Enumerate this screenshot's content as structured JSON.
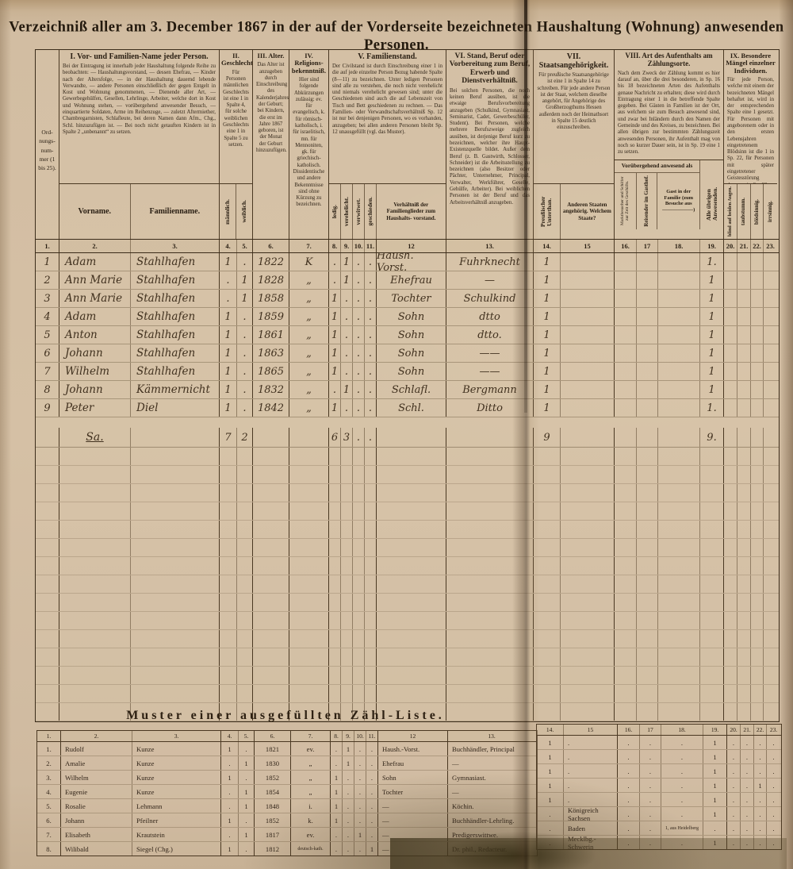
{
  "title": "Verzeichniß aller am 3. December 1867 in der auf der Vorderseite bezeichneten Haushaltung (Wohnung) anwesenden Personen.",
  "header": {
    "ord_label": "Ord- nungs- num- mer (1 bis 25).",
    "s1": {
      "title": "I. Vor- und Familien-Name jeder Person.",
      "desc": "Bei der Eintragung ist innerhalb jeder Haushaltung folgende Reihe zu beobachten: — Haushaltungsvorstand, — dessen Ehefrau, — Kinder nach der Altersfolge, — in der Haushaltung dauernd lebende Verwandte, — andere Personen einschließlich der gegen Entgelt in Kost und Wohnung genommenen, — Dienende aller Art, — Gewerbegehülfen, Gesellen, Lehrlinge, Arbeiter, welche dort in Kost und Wohnung stehen, — vorübergehend anwesender Besuch, — einquartierte Soldaten, Arme im Reihenzuge, — zuletzt Aftermiether, Chambregarnisten, Schlafleute, bei deren Namen dann Afm., Chg., Schl. hinzuzufügen ist. — Bei noch nicht getauften Kindern ist in Spalte 2 „unbenannt“ zu setzen.",
      "sub_vorname": "Vorname.",
      "sub_familienname": "Familienname."
    },
    "s2": {
      "title": "II. Geschlecht.",
      "desc": "Für Personen männlichen Geschlechts ist eine 1 in Spalte 4, für solche weiblichen Geschlechts eine 1 in Spalte 5 zu setzen.",
      "sub_m": "männlich.",
      "sub_w": "weiblich."
    },
    "s3": {
      "title": "III. Alter.",
      "desc": "Das Alter ist anzugeben durch Einschreibung des Kalenderjahres der Geburt; bei Kindern, die erst im Jahre 1867 geboren, ist der Monat der Geburt hinzuzufügen."
    },
    "s4": {
      "title": "IV. Religions- bekenntniß.",
      "desc": "Hier sind folgende Abkürzungen zulässig: ev. für evangelisch, k. für römisch- katholisch, i. für israelitisch, mn. für Mennoniten, gk. für griechisch- katholisch. Dissidentische und andere Bekenntnisse sind ohne Kürzung zu bezeichnen."
    },
    "s5": {
      "title": "V. Familienstand.",
      "desc": "Der Civilstand ist durch Einschreibung einer 1 in die auf jede einzelne Person Bezug habende Spalte (8—11) zu bezeichnen. Unter ledigen Personen sind alle zu verstehen, die noch nicht verehelicht und niemals verehelicht gewesen sind; unter die Geschiedenen sind auch die auf Lebenszeit von Tisch und Bett geschiedenen zu rechnen. — Das Familien- oder Verwandtschaftsverhältniß Sp. 12 ist nur bei denjenigen Personen, wo es vorhanden, anzugeben; bei allen anderen Personen bleibt Sp. 12 unausgefüllt (vgl. das Muster).",
      "sub8": "ledig.",
      "sub9": "verehelicht.",
      "sub10": "verwitwet.",
      "sub11": "geschieden.",
      "sub12": "Verhältniß der Familienglieder zum Haushalts- vorstand."
    },
    "s6": {
      "title": "VI. Stand, Beruf oder Vorbereitung zum Beruf, Erwerb und Dienstverhältniß.",
      "desc": "Bei solchen Personen, die noch keinen Beruf ausüben, ist die etwaige Berufsvorbereitung anzugeben (Schulkind, Gymnasiast, Seminarist, Cadet, Gewerbeschüler, Student). Bei Personen, welche mehrere Berufszweige zugleich ausüben, ist derjenige Beruf kurz zu bezeichnen, welcher ihre Haupt-Existenzquelle bildet. Außer dem Beruf (z. B. Gastwirth, Schlosser, Schneider) ist die Arbeitsstellung zu bezeichnen (also Besitzer oder Pächter, Unternehmer, Principal, Verwalter, Werkführer, Geselle, Gehülfe, Arbeiter). Bei weiblichen Personen ist der Beruf und das Arbeitsverhältniß anzugeben."
    },
    "s7": {
      "title": "VII. Staatsangehörigkeit.",
      "desc": "Für preußische Staatsangehörige ist eine 1 in Spalte 14 zu schreiben. Für jede andere Person ist der Staat, welchem dieselbe angehört, für Angehörige des Großherzogthums Hessen außerdem noch der Heimathsort in Spalte 15 deutlich einzuschreiben.",
      "sub14": "Preußischer Unterthan.",
      "sub15": "Anderen Staaten angehörig. Welchem Staate?"
    },
    "s8": {
      "title": "VIII. Art des Aufenthalts am Zählungsorte.",
      "desc": "Nach dem Zweck der Zählung kommt es hier darauf an, über die drei besonderen, in Sp. 16 bis 18 bezeichneten Arten des Aufenthalts genaue Nachricht zu erhalten; diese wird durch Eintragung einer 1 in die betreffende Spalte gegeben. Bei Gästen in Familien ist der Ort, aus welchem sie zum Besuch anwesend sind, und zwar bei Inländern durch den Namen der Gemeinde und des Kreises, zu bezeichnen. Bei allen übrigen zur bestimmten Zählungszeit anwesenden Personen, ihr Aufenthalt mag von noch so kurzer Dauer sein, ist in Sp. 19 eine 1 zu setzen.",
      "band": "Vorübergehend anwesend als",
      "sub16": "Marktbesucher und Schiffer zur Zeit des Geschäfts.",
      "sub17": "Reisender im Gasthof.",
      "sub18": "Gast in der Familie (zum Besuche aus ——————)",
      "sub19": "Alle übrigen Anwesenden."
    },
    "s9": {
      "title": "IX. Besondere Mängel einzelner Individuen.",
      "desc": "Für jede Person, welche mit einem der bezeichneten Mängel behaftet ist, wird in der entsprechenden Spalte eine 1 gesetzt. Für Personen mit angeborenem oder in den ersten Lebensjahren eingetretenem Blödsinn ist die 1 in Sp. 22, für Personen mit später eingetretener Geistesstörung dagegen in Sp. 23 zu setzen.",
      "sub20": "blind auf beiden Augen.",
      "sub21": "taubstumm.",
      "sub22": "blödsinnig.",
      "sub23": "irrsinnig."
    },
    "col_numbers": [
      "1.",
      "2.",
      "3.",
      "4.",
      "5.",
      "6.",
      "7.",
      "8.",
      "9.",
      "10.",
      "11.",
      "12",
      "13.",
      "14.",
      "15",
      "16.",
      "17",
      "18.",
      "19.",
      "20.",
      "21.",
      "22.",
      "23."
    ]
  },
  "main": {
    "rows": [
      [
        "1",
        "Adam",
        "Stahlhafen",
        "1",
        ".",
        "1822",
        "K",
        ".",
        "1",
        ".",
        ".",
        "Haush. Vorst.",
        "Fuhrknecht",
        "1",
        "",
        "",
        "",
        "",
        "1.",
        "",
        "",
        "",
        ""
      ],
      [
        "2",
        "Ann Marie",
        "Stahlhafen",
        ".",
        "1",
        "1828",
        "„",
        ".",
        "1",
        ".",
        ".",
        "Ehefrau",
        "—",
        "1",
        "",
        "",
        "",
        "",
        "1",
        "",
        "",
        "",
        ""
      ],
      [
        "3",
        "Ann Marie",
        "Stahlhafen",
        ".",
        "1",
        "1858",
        "„",
        "1",
        ".",
        ".",
        ".",
        "Tochter",
        "Schulkind",
        "1",
        "",
        "",
        "",
        "",
        "1",
        "",
        "",
        "",
        ""
      ],
      [
        "4",
        "Adam",
        "Stahlhafen",
        "1",
        ".",
        "1859",
        "„",
        "1",
        ".",
        ".",
        ".",
        "Sohn",
        "dtto",
        "1",
        "",
        "",
        "",
        "",
        "1",
        "",
        "",
        "",
        ""
      ],
      [
        "5",
        "Anton",
        "Stahlhafen",
        "1",
        ".",
        "1861",
        "„",
        "1",
        ".",
        ".",
        ".",
        "Sohn",
        "dtto.",
        "1",
        "",
        "",
        "",
        "",
        "1",
        "",
        "",
        "",
        ""
      ],
      [
        "6",
        "Johann",
        "Stahlhafen",
        "1",
        ".",
        "1863",
        "„",
        "1",
        ".",
        ".",
        ".",
        "Sohn",
        "——",
        "1",
        "",
        "",
        "",
        "",
        "1",
        "",
        "",
        "",
        ""
      ],
      [
        "7",
        "Wilhelm",
        "Stahlhafen",
        "1",
        ".",
        "1865",
        "„",
        "1",
        ".",
        ".",
        ".",
        "Sohn",
        "——",
        "1",
        "",
        "",
        "",
        "",
        "1",
        "",
        "",
        "",
        ""
      ],
      [
        "8",
        "Johann",
        "Kämmernicht",
        "1",
        ".",
        "1832",
        "„",
        ".",
        "1",
        ".",
        ".",
        "Schlafl.",
        "Bergmann",
        "1",
        "",
        "",
        "",
        "",
        "1",
        "",
        "",
        "",
        ""
      ],
      [
        "9",
        "Peter",
        "Diel",
        "1",
        ".",
        "1842",
        "„",
        "1",
        ".",
        ".",
        ".",
        "Schl.",
        "Ditto",
        "1",
        "",
        "",
        "",
        "",
        "1.",
        "",
        "",
        "",
        ""
      ]
    ],
    "sum_row": [
      "",
      "Sa.",
      "",
      "7",
      "2",
      "",
      "",
      "6",
      "3",
      ".",
      ".",
      "",
      "",
      "9",
      "",
      "",
      "",
      "",
      "9.",
      "",
      "",
      "",
      ""
    ]
  },
  "muster": {
    "title": "Muster einer ausgefüllten Zähl-Liste.",
    "rows": [
      [
        "1.",
        "Rudolf",
        "Kunze",
        "1",
        ".",
        "1821",
        "ev.",
        ".",
        "1",
        ".",
        ".",
        "Haush.-Vorst.",
        "Buchhändler, Principal",
        "1",
        ".",
        ".",
        ".",
        ".",
        "1",
        ".",
        ".",
        ".",
        "."
      ],
      [
        "2.",
        "Amalie",
        "Kunze",
        ".",
        "1",
        "1830",
        "„",
        ".",
        "1",
        ".",
        ".",
        "Ehefrau",
        "—",
        "1",
        ".",
        ".",
        ".",
        ".",
        "1",
        ".",
        ".",
        ".",
        "."
      ],
      [
        "3.",
        "Wilhelm",
        "Kunze",
        "1",
        ".",
        "1852",
        "„",
        "1",
        ".",
        ".",
        ".",
        "Sohn",
        "Gymnasiast.",
        "1",
        ".",
        ".",
        ".",
        ".",
        "1",
        ".",
        ".",
        ".",
        "."
      ],
      [
        "4.",
        "Eugenie",
        "Kunze",
        ".",
        "1",
        "1854",
        "„",
        "1",
        ".",
        ".",
        ".",
        "Tochter",
        "—",
        "1",
        ".",
        ".",
        ".",
        ".",
        "1",
        ".",
        ".",
        "1",
        "."
      ],
      [
        "5.",
        "Rosalie",
        "Lehmann",
        ".",
        "1",
        "1848",
        "i.",
        "1",
        ".",
        ".",
        ".",
        "—",
        "Köchin.",
        "1",
        ".",
        ".",
        ".",
        ".",
        "1",
        ".",
        ".",
        ".",
        "."
      ],
      [
        "6.",
        "Johann",
        "Pfeilner",
        "1",
        ".",
        "1852",
        "k.",
        "1",
        ".",
        ".",
        ".",
        "—",
        "Buchhändler-Lehrling.",
        ".",
        "Königreich Sachsen",
        ".",
        ".",
        ".",
        "1",
        ".",
        ".",
        ".",
        "."
      ],
      [
        "7.",
        "Elisabeth",
        "Krautstein",
        ".",
        "1",
        "1817",
        "ev.",
        ".",
        ".",
        "1",
        ".",
        "—",
        "Predigerswittwe.",
        ".",
        "Baden",
        ".",
        ".",
        "1, aus Heidelberg",
        ".",
        ".",
        ".",
        ".",
        "."
      ],
      [
        "8.",
        "Wilibald",
        "Siegel (Chg.)",
        "1",
        ".",
        "1812",
        "deutsch-kath.",
        ".",
        ".",
        ".",
        "1",
        "—",
        "Dr. phil., Redacteur.",
        ".",
        "Mecklbg.-Schwerin",
        ".",
        ".",
        ".",
        "1",
        ".",
        ".",
        ".",
        "."
      ]
    ]
  }
}
